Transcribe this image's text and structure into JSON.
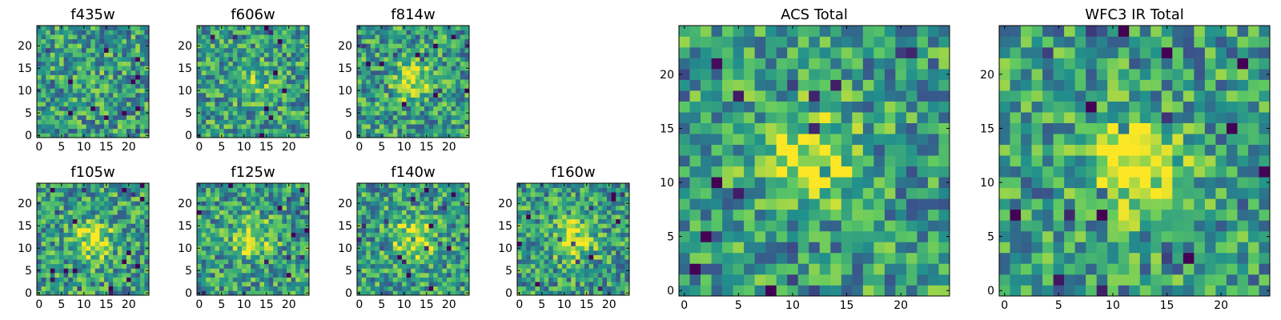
{
  "chart_data": [
    {
      "type": "heatmap",
      "title": "f435w",
      "x_ticks": [
        "0",
        "5",
        "10",
        "15",
        "20"
      ],
      "y_ticks": [
        "0",
        "5",
        "10",
        "15",
        "20"
      ],
      "xlim": [
        -0.5,
        24.5
      ],
      "ylim": [
        -0.5,
        24.5
      ],
      "grid_size": 25,
      "source_peak": [
        12,
        12
      ],
      "signal_level": 0.05,
      "colormap": "viridis"
    },
    {
      "type": "heatmap",
      "title": "f606w",
      "x_ticks": [
        "0",
        "5",
        "10",
        "15",
        "20"
      ],
      "y_ticks": [
        "0",
        "5",
        "10",
        "15",
        "20"
      ],
      "xlim": [
        -0.5,
        24.5
      ],
      "ylim": [
        -0.5,
        24.5
      ],
      "grid_size": 25,
      "source_peak": [
        12,
        12
      ],
      "signal_level": 0.25,
      "colormap": "viridis"
    },
    {
      "type": "heatmap",
      "title": "f814w",
      "x_ticks": [
        "0",
        "5",
        "10",
        "15",
        "20"
      ],
      "y_ticks": [
        "0",
        "5",
        "10",
        "15",
        "20"
      ],
      "xlim": [
        -0.5,
        24.5
      ],
      "ylim": [
        -0.5,
        24.5
      ],
      "grid_size": 25,
      "source_peak": [
        12,
        12
      ],
      "signal_level": 0.35,
      "colormap": "viridis"
    },
    {
      "type": "heatmap",
      "title": "f105w",
      "x_ticks": [
        "0",
        "5",
        "10",
        "15",
        "20"
      ],
      "y_ticks": [
        "0",
        "5",
        "10",
        "15",
        "20"
      ],
      "xlim": [
        -0.5,
        24.5
      ],
      "ylim": [
        -0.5,
        24.5
      ],
      "grid_size": 25,
      "source_peak": [
        12,
        12
      ],
      "signal_level": 0.45,
      "colormap": "viridis"
    },
    {
      "type": "heatmap",
      "title": "f125w",
      "x_ticks": [
        "0",
        "5",
        "10",
        "15",
        "20"
      ],
      "y_ticks": [
        "0",
        "5",
        "10",
        "15",
        "20"
      ],
      "xlim": [
        -0.5,
        24.5
      ],
      "ylim": [
        -0.5,
        24.5
      ],
      "grid_size": 25,
      "source_peak": [
        12,
        12
      ],
      "signal_level": 0.4,
      "colormap": "viridis"
    },
    {
      "type": "heatmap",
      "title": "f140w",
      "x_ticks": [
        "0",
        "5",
        "10",
        "15",
        "20"
      ],
      "y_ticks": [
        "0",
        "5",
        "10",
        "15",
        "20"
      ],
      "xlim": [
        -0.5,
        24.5
      ],
      "ylim": [
        -0.5,
        24.5
      ],
      "grid_size": 25,
      "source_peak": [
        12,
        12
      ],
      "signal_level": 0.45,
      "colormap": "viridis"
    },
    {
      "type": "heatmap",
      "title": "f160w",
      "x_ticks": [
        "0",
        "5",
        "10",
        "15",
        "20"
      ],
      "y_ticks": [
        "0",
        "5",
        "10",
        "15",
        "20"
      ],
      "xlim": [
        -0.5,
        24.5
      ],
      "ylim": [
        -0.5,
        24.5
      ],
      "grid_size": 25,
      "source_peak": [
        12,
        12
      ],
      "signal_level": 0.5,
      "colormap": "viridis"
    },
    {
      "type": "heatmap",
      "title": "ACS Total",
      "x_ticks": [
        "0",
        "5",
        "10",
        "15",
        "20"
      ],
      "y_ticks": [
        "0",
        "5",
        "10",
        "15",
        "20"
      ],
      "xlim": [
        -0.5,
        24.5
      ],
      "ylim": [
        -0.5,
        24.5
      ],
      "grid_size": 25,
      "source_peak": [
        12,
        12
      ],
      "signal_level": 0.45,
      "colormap": "viridis"
    },
    {
      "type": "heatmap",
      "title": "WFC3 IR Total",
      "x_ticks": [
        "0",
        "5",
        "10",
        "15",
        "20"
      ],
      "y_ticks": [
        "0",
        "5",
        "10",
        "15",
        "20"
      ],
      "xlim": [
        -0.5,
        24.5
      ],
      "ylim": [
        -0.5,
        24.5
      ],
      "grid_size": 25,
      "source_peak": [
        12,
        12
      ],
      "signal_level": 0.6,
      "colormap": "viridis"
    }
  ]
}
